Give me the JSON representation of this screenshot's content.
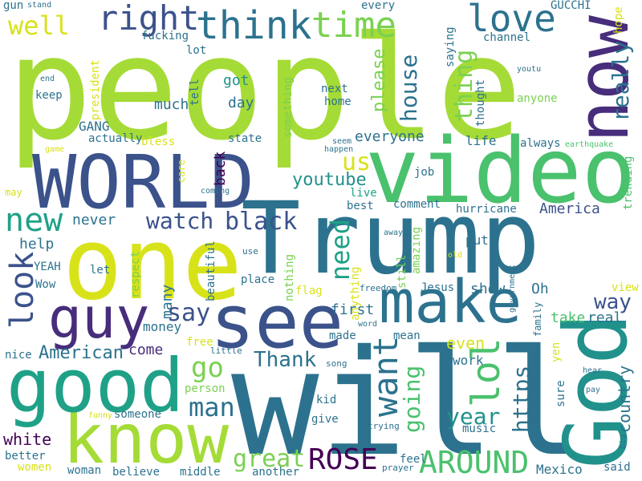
{
  "palette": {
    "lime": "#a5db36",
    "yellow": "#d8e219",
    "green": "#4ac16d",
    "mint": "#7ad151",
    "teal": "#1fa187",
    "cyan": "#21918c",
    "blue": "#2c728e",
    "slate": "#3b528b",
    "indigo": "#472d7b",
    "purple": "#440154"
  },
  "words": {
    "people": "people",
    "will": "will",
    "trump": "Trump",
    "video": "video",
    "world": "WORLD",
    "one": "one",
    "god": "God",
    "know": "know",
    "good": "good",
    "see": "see",
    "now": "now",
    "make": "make",
    "guy": "guy",
    "think": "think",
    "right": "right",
    "love": "love",
    "time": "time",
    "new": "new",
    "look": "look",
    "watch": "watch",
    "black": "black",
    "need": "need",
    "want": "want",
    "lol": "lol",
    "going": "going",
    "https": "https",
    "year": "year",
    "great": "great",
    "rose": "ROSE",
    "around": "AROUND",
    "really": "really",
    "house": "house",
    "thing": "thing",
    "us": "us",
    "youtube": "youtube",
    "way": "way",
    "america": "America",
    "american": "American",
    "man": "man",
    "go": "go",
    "thank": "Thank",
    "say": "say",
    "white": "white",
    "well": "well",
    "country": "country",
    "everyone": "everyone",
    "help": "help",
    "never": "never",
    "back": "back",
    "please": "please",
    "something": "something",
    "much": "much",
    "day": "day",
    "got": "got",
    "even": "even",
    "come": "come",
    "real": "real",
    "take": "take",
    "first": "first",
    "show": "show",
    "oh": "Oh",
    "money": "money",
    "many": "many",
    "gang": "GANG",
    "actually": "actually",
    "state": "state",
    "life": "life",
    "always": "always",
    "trending": "trending",
    "hurricane": "hurricane",
    "comment": "comment",
    "best": "best",
    "live": "live",
    "job": "job",
    "put": "put",
    "amazing": "amazing",
    "still": "still",
    "jesus": "Jesus",
    "made": "made",
    "mean": "mean",
    "work": "work",
    "music": "music",
    "give": "give",
    "kid": "kid",
    "feel": "feel",
    "said": "said",
    "mexico": "Mexico",
    "another": "another",
    "middle": "middle",
    "believe": "believe",
    "woman": "woman",
    "women": "women",
    "better": "better",
    "someone": "someone",
    "person": "person",
    "free": "free",
    "nice": "nice",
    "wow": "Wow",
    "yeah": "YEAH",
    "let": "let",
    "respect": "respect",
    "beautiful": "beautiful",
    "place": "place",
    "nothing": "nothing",
    "flag": "flag",
    "anything": "anything",
    "freedom": "freedom",
    "government": "government",
    "view": "view",
    "family": "family",
    "yen": "yen",
    "sure": "sure",
    "hear": "hear",
    "pay": "pay",
    "big": "big",
    "prayer": "prayer",
    "trying": "trying",
    "song": "song",
    "little": "little",
    "funny": "funny",
    "word": "word",
    "use": "use",
    "old": "old",
    "away": "away",
    "keep": "keep",
    "president": "president",
    "tell": "tell",
    "lot": "lot",
    "fucking": "fucking",
    "gun": "gun",
    "stand": "stand",
    "end": "end",
    "game": "game",
    "may": "may",
    "care": "care",
    "coming": "coming",
    "bless": "bless",
    "seem": "seem",
    "happen": "happen",
    "next": "next",
    "home": "home",
    "anyone": "anyone",
    "thought": "thought",
    "saying": "saying",
    "channel": "channel",
    "gucchi": "GUCCHI",
    "every": "every",
    "hope": "hope",
    "youtu": "youtu",
    "earthquake": "earthquake"
  }
}
